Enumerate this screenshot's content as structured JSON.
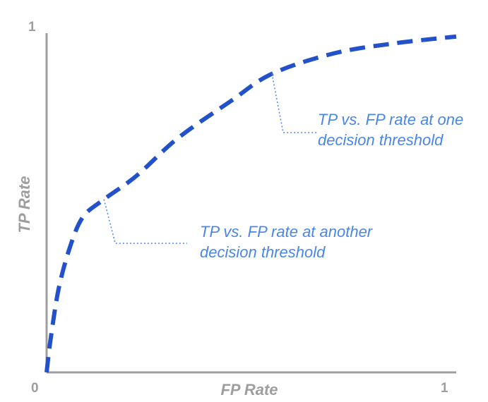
{
  "chart_data": {
    "type": "line",
    "xlabel": "FP Rate",
    "ylabel": "TP Rate",
    "xlim": [
      0,
      1
    ],
    "ylim": [
      0,
      1
    ],
    "x_ticks": [
      "0",
      "1"
    ],
    "y_ticks": [
      "1"
    ],
    "grid": false,
    "series": [
      {
        "points": [
          {
            "x": 0.0,
            "y": 0.0
          },
          {
            "x": 0.01,
            "y": 0.1
          },
          {
            "x": 0.03,
            "y": 0.25
          },
          {
            "x": 0.06,
            "y": 0.38
          },
          {
            "x": 0.09,
            "y": 0.46
          },
          {
            "x": 0.14,
            "y": 0.51
          },
          {
            "x": 0.22,
            "y": 0.58
          },
          {
            "x": 0.32,
            "y": 0.69
          },
          {
            "x": 0.45,
            "y": 0.8
          },
          {
            "x": 0.55,
            "y": 0.88
          },
          {
            "x": 0.7,
            "y": 0.94
          },
          {
            "x": 0.85,
            "y": 0.97
          },
          {
            "x": 1.0,
            "y": 0.99
          }
        ]
      }
    ],
    "annotations": [
      {
        "lines": [
          "TP vs. FP rate at one",
          "decision threshold"
        ],
        "point": {
          "x": 0.55,
          "y": 0.88
        }
      },
      {
        "lines": [
          "TP vs. FP rate at another",
          "decision threshold"
        ],
        "point": {
          "x": 0.14,
          "y": 0.51
        }
      }
    ],
    "colors": {
      "curve": "#2251c9",
      "annotation_text": "#4a86e8",
      "axis": "#9e9e9e"
    }
  }
}
